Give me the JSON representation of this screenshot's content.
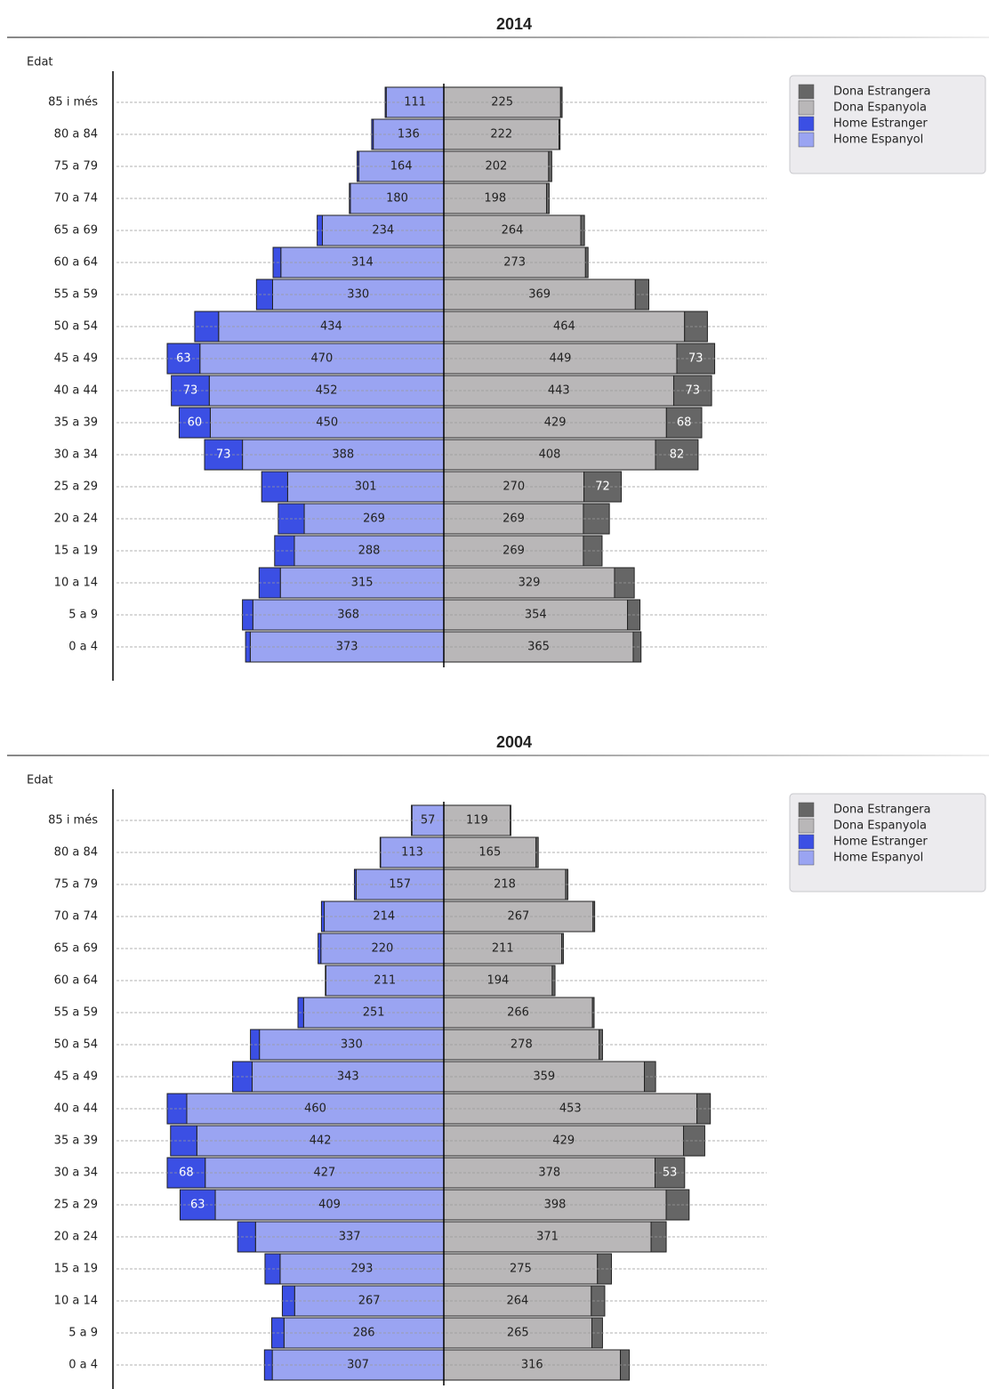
{
  "chart_data": [
    {
      "type": "pyramid",
      "title": "2014",
      "y_label": "Edat",
      "categories": [
        "85 i més",
        "80 a 84",
        "75 a 79",
        "70 a 74",
        "65 a 69",
        "60 a 64",
        "55 a 59",
        "50 a 54",
        "45 a 49",
        "40 a 44",
        "35 a 39",
        "30 a 34",
        "25 a 29",
        "20 a 24",
        "15 a 19",
        "10 a 14",
        "5 a 9",
        "0 a 4"
      ],
      "grid": true,
      "series": [
        {
          "name": "Dona Estrangera",
          "color": "#666666",
          "side": "right",
          "values": [
            3,
            2,
            6,
            5,
            7,
            5,
            26,
            44,
            73,
            73,
            68,
            82,
            72,
            50,
            36,
            38,
            24,
            15
          ],
          "value_labels": [
            null,
            null,
            null,
            null,
            null,
            null,
            null,
            null,
            "73",
            "73",
            "68",
            "82",
            "72",
            null,
            null,
            null,
            null,
            null
          ]
        },
        {
          "name": "Dona Espanyola",
          "color": "#b9b7b8",
          "side": "right",
          "values": [
            225,
            222,
            202,
            198,
            264,
            273,
            369,
            464,
            449,
            443,
            429,
            408,
            270,
            269,
            269,
            329,
            354,
            365
          ]
        },
        {
          "name": "Home Estranger",
          "color": "#3b4fe4",
          "side": "left",
          "values": [
            2,
            3,
            3,
            2,
            10,
            15,
            31,
            46,
            63,
            73,
            60,
            73,
            50,
            50,
            38,
            41,
            20,
            9
          ],
          "value_labels": [
            null,
            null,
            null,
            null,
            null,
            null,
            null,
            null,
            "63",
            "73",
            "60",
            "73",
            null,
            null,
            null,
            null,
            null,
            null
          ]
        },
        {
          "name": "Home Espanyol",
          "color": "#9aa4f2",
          "side": "left",
          "values": [
            111,
            136,
            164,
            180,
            234,
            314,
            330,
            434,
            470,
            452,
            450,
            388,
            301,
            269,
            288,
            315,
            368,
            373
          ]
        }
      ]
    },
    {
      "type": "pyramid",
      "title": "2004",
      "y_label": "Edat",
      "categories": [
        "85 i més",
        "80 a 84",
        "75 a 79",
        "70 a 74",
        "65 a 69",
        "60 a 64",
        "55 a 59",
        "50 a 54",
        "45 a 49",
        "40 a 44",
        "35 a 39",
        "30 a 34",
        "25 a 29",
        "20 a 24",
        "15 a 19",
        "10 a 14",
        "5 a 9",
        "0 a 4"
      ],
      "grid": true,
      "series": [
        {
          "name": "Dona Estrangera",
          "color": "#666666",
          "side": "right",
          "values": [
            1,
            4,
            4,
            3,
            3,
            5,
            3,
            6,
            20,
            24,
            38,
            53,
            41,
            27,
            25,
            24,
            19,
            16
          ],
          "value_labels": [
            null,
            null,
            null,
            null,
            null,
            null,
            null,
            null,
            null,
            null,
            null,
            "53",
            null,
            null,
            null,
            null,
            null,
            null
          ]
        },
        {
          "name": "Dona Espanyola",
          "color": "#b9b7b8",
          "side": "right",
          "values": [
            119,
            165,
            218,
            267,
            211,
            194,
            266,
            278,
            359,
            453,
            429,
            378,
            398,
            371,
            275,
            264,
            265,
            316
          ]
        },
        {
          "name": "Home Estranger",
          "color": "#3b4fe4",
          "side": "left",
          "values": [
            1,
            1,
            3,
            5,
            5,
            1,
            10,
            16,
            35,
            35,
            47,
            68,
            63,
            32,
            27,
            22,
            22,
            14
          ],
          "value_labels": [
            null,
            null,
            null,
            null,
            null,
            null,
            null,
            null,
            null,
            null,
            null,
            "68",
            "63",
            null,
            null,
            null,
            null,
            null
          ]
        },
        {
          "name": "Home Espanyol",
          "color": "#9aa4f2",
          "side": "left",
          "values": [
            57,
            113,
            157,
            214,
            220,
            211,
            251,
            330,
            343,
            460,
            442,
            427,
            409,
            337,
            293,
            267,
            286,
            307
          ]
        }
      ]
    }
  ]
}
